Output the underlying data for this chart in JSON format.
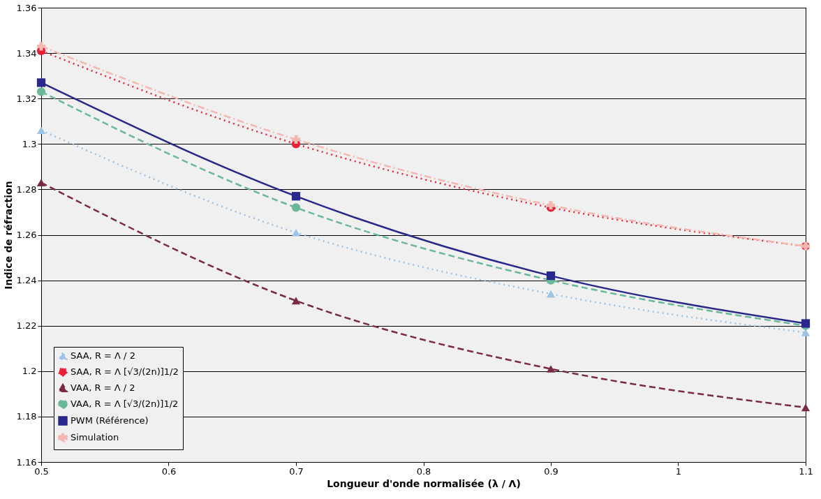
{
  "chart_data": {
    "type": "line",
    "xlabel": "Longueur d'onde normalisée (λ / Λ)",
    "ylabel": "Indice de réfraction",
    "x": [
      0.5,
      0.7,
      0.9,
      1.1
    ],
    "xlim": [
      0.5,
      1.1
    ],
    "xticks": [
      0.5,
      0.6,
      0.7,
      0.8,
      0.9,
      1,
      1.1
    ],
    "ylim": [
      1.16,
      1.36
    ],
    "yticks": [
      1.16,
      1.18,
      1.2,
      1.22,
      1.24,
      1.26,
      1.28,
      1.3,
      1.32,
      1.34,
      1.36
    ],
    "grid": "y",
    "legend": "bottom left",
    "series": [
      {
        "name": "SAA, R = Λ / 2",
        "color": "#9dc3e6",
        "marker": "triangle",
        "line_style": "dotted",
        "values": [
          1.306,
          1.261,
          1.234,
          1.217
        ]
      },
      {
        "name": "SAA, R = Λ [√3/(2n)]1/2",
        "color": "#e8203a",
        "marker": "circle",
        "line_style": "dotted",
        "values": [
          1.341,
          1.3,
          1.272,
          1.255
        ]
      },
      {
        "name": "VAA, R = Λ / 2",
        "color": "#7a2a48",
        "marker": "triangle",
        "line_style": "dashed",
        "values": [
          1.283,
          1.231,
          1.201,
          1.184
        ]
      },
      {
        "name": "VAA, R = Λ [√3/(2n)]1/2",
        "color": "#6ab89a",
        "marker": "circle",
        "line_style": "dashed",
        "values": [
          1.323,
          1.272,
          1.24,
          1.22
        ]
      },
      {
        "name": "PWM  (Référence)",
        "color": "#28288c",
        "marker": "square",
        "line_style": "solid",
        "values": [
          1.327,
          1.277,
          1.242,
          1.221
        ]
      },
      {
        "name": "Simulation",
        "color": "#f4b8b0",
        "marker": "cross",
        "line_style": "dashdot",
        "values": [
          1.343,
          1.302,
          1.273,
          1.255
        ]
      }
    ]
  }
}
